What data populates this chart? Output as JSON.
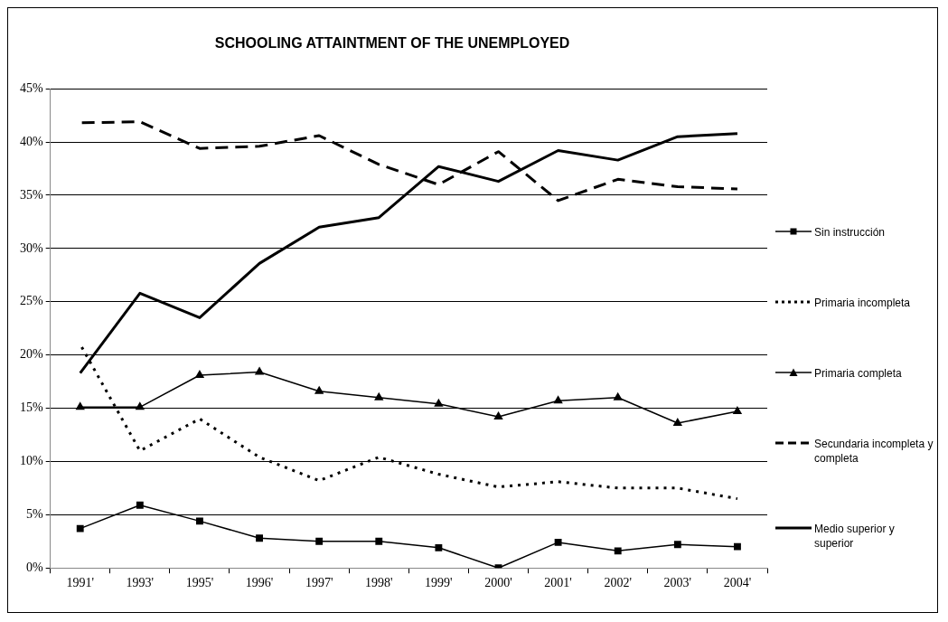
{
  "chart_data": {
    "type": "line",
    "title": "SCHOOLING ATTAINTMENT OF THE UNEMPLOYED",
    "categories": [
      "1991'",
      "1993'",
      "1995'",
      "1996'",
      "1997'",
      "1998'",
      "1999'",
      "2000'",
      "2001'",
      "2002'",
      "2003'",
      "2004'"
    ],
    "series": [
      {
        "name": "Sin instrucción",
        "color": "#000000",
        "marker": "square",
        "line_style": "solid",
        "values": [
          3.7,
          5.9,
          4.4,
          2.8,
          2.5,
          2.5,
          1.9,
          0,
          2.4,
          1.6,
          2.2,
          2.0
        ]
      },
      {
        "name": "Primaria incompleta",
        "color": "#000000",
        "marker": "none",
        "line_style": "dotted",
        "values": [
          21,
          11,
          14,
          10.4,
          8.2,
          10.4,
          8.8,
          7.6,
          8.1,
          7.5,
          7.5,
          6.5
        ]
      },
      {
        "name": "Primaria completa",
        "color": "#000000",
        "marker": "triangle",
        "line_style": "solid",
        "values": [
          15.1,
          15.1,
          18.1,
          18.4,
          16.6,
          16.0,
          15.4,
          14.2,
          15.7,
          16.0,
          13.6,
          14.7
        ]
      },
      {
        "name": "Secundaria incompleta y completa",
        "color": "#000000",
        "marker": "none",
        "line_style": "dashed",
        "values": [
          41.8,
          41.9,
          39.4,
          39.6,
          40.6,
          37.9,
          36.0,
          39.1,
          34.5,
          36.5,
          35.8,
          35.6
        ]
      },
      {
        "name": "Medio superior y superior",
        "color": "#000000",
        "marker": "none",
        "line_style": "solid",
        "values": [
          18.3,
          25.8,
          23.5,
          28.6,
          32.0,
          32.9,
          37.7,
          36.3,
          39.2,
          38.3,
          40.5,
          40.8
        ]
      }
    ],
    "ylim": [
      0,
      45
    ],
    "yticks": [
      {
        "value": 0,
        "label": "0%"
      },
      {
        "value": 5,
        "label": "5%"
      },
      {
        "value": 10,
        "label": "10%"
      },
      {
        "value": 15,
        "label": "15%"
      },
      {
        "value": 20,
        "label": "20%"
      },
      {
        "value": 25,
        "label": "25%"
      },
      {
        "value": 30,
        "label": "30%"
      },
      {
        "value": 35,
        "label": "35%"
      },
      {
        "value": 40,
        "label": "40%"
      },
      {
        "value": 45,
        "label": "45%"
      }
    ],
    "grid": "y",
    "legend": "right"
  }
}
